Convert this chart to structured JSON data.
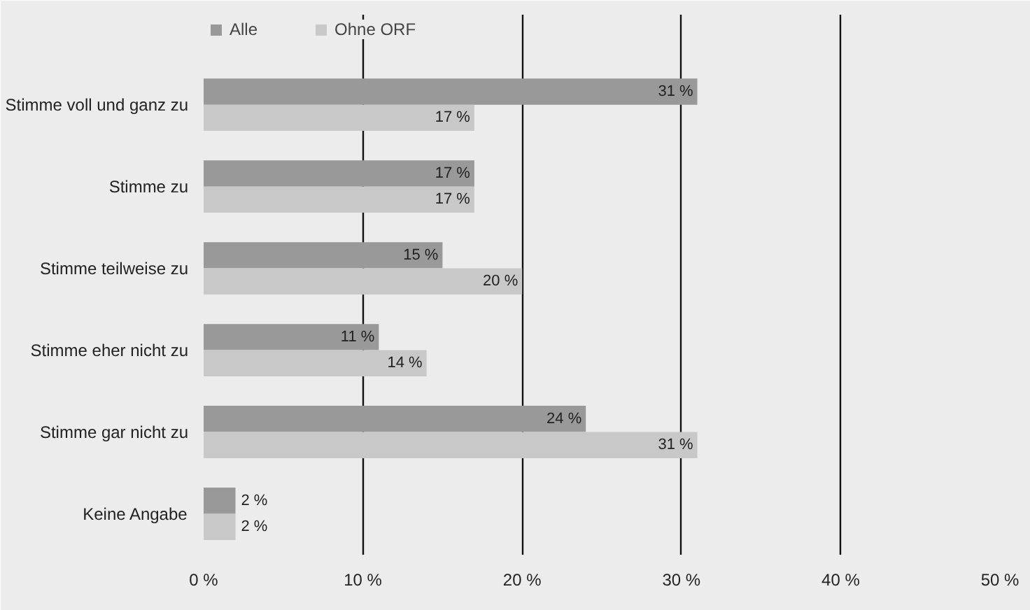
{
  "chart_data": {
    "type": "bar",
    "orientation": "horizontal",
    "categories": [
      "Stimme voll und ganz zu",
      "Stimme zu",
      "Stimme teilweise zu",
      "Stimme eher nicht zu",
      "Stimme gar nicht zu",
      "Keine Angabe"
    ],
    "series": [
      {
        "name": "Alle",
        "color": "#999999",
        "values": [
          31,
          17,
          15,
          11,
          24,
          2
        ],
        "value_labels": [
          "31 %",
          "17 %",
          "15 %",
          "11 %",
          "24 %",
          "2 %"
        ]
      },
      {
        "name": "Ohne ORF",
        "color": "#c8c8c8",
        "values": [
          17,
          17,
          20,
          14,
          31,
          2
        ],
        "value_labels": [
          "17 %",
          "17 %",
          "20 %",
          "14 %",
          "31 %",
          "2 %"
        ]
      }
    ],
    "xlim": [
      0,
      50
    ],
    "xticks": [
      {
        "value": 0,
        "label": "0 %"
      },
      {
        "value": 10,
        "label": "10 %"
      },
      {
        "value": 20,
        "label": "20 %"
      },
      {
        "value": 30,
        "label": "30 %"
      },
      {
        "value": 40,
        "label": "40 %"
      },
      {
        "value": 50,
        "label": "50 %"
      }
    ],
    "grid": "x",
    "legend": "top left"
  }
}
